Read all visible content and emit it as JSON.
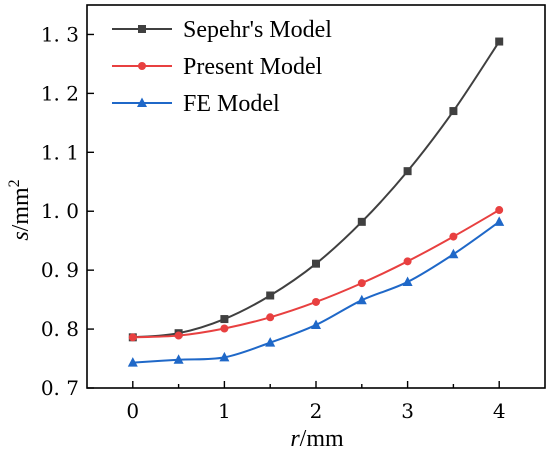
{
  "chart_data": {
    "type": "line",
    "xlabel_italic": "r",
    "xlabel_unit": "/mm",
    "ylabel_italic": "s",
    "ylabel_unit": "/mm",
    "ylabel_sup": "2",
    "xlim": [
      -0.5,
      4.5
    ],
    "ylim": [
      0.7,
      1.35
    ],
    "xticks": [
      0,
      1,
      2,
      3,
      4
    ],
    "xtick_labels": [
      "0",
      "1",
      "2",
      "3",
      "4"
    ],
    "yticks": [
      0.7,
      0.8,
      0.9,
      1.0,
      1.1,
      1.2,
      1.3
    ],
    "ytick_labels": [
      "0. 7",
      "0. 8",
      "0. 9",
      "1. 0",
      "1. 1",
      "1. 2",
      "1. 3"
    ],
    "legend_position": "top-left",
    "grid": false,
    "series": [
      {
        "name": "Sepehr's Model",
        "color": "#404040",
        "marker": "square",
        "x": [
          0,
          0.5,
          1,
          1.5,
          2,
          2.5,
          3,
          3.5,
          4
        ],
        "y": [
          0.786,
          0.793,
          0.817,
          0.857,
          0.911,
          0.982,
          1.068,
          1.17,
          1.288
        ]
      },
      {
        "name": "Present Model",
        "color": "#e84040",
        "marker": "circle",
        "x": [
          0,
          0.5,
          1,
          1.5,
          2,
          2.5,
          3,
          3.5,
          4
        ],
        "y": [
          0.786,
          0.789,
          0.801,
          0.82,
          0.846,
          0.878,
          0.915,
          0.957,
          1.002
        ]
      },
      {
        "name": "FE Model",
        "color": "#1f68c8",
        "marker": "triangle",
        "x": [
          0,
          0.5,
          1,
          1.5,
          2,
          2.5,
          3,
          3.5,
          4
        ],
        "y": [
          0.743,
          0.748,
          0.752,
          0.777,
          0.807,
          0.849,
          0.88,
          0.927,
          0.982
        ]
      }
    ]
  }
}
